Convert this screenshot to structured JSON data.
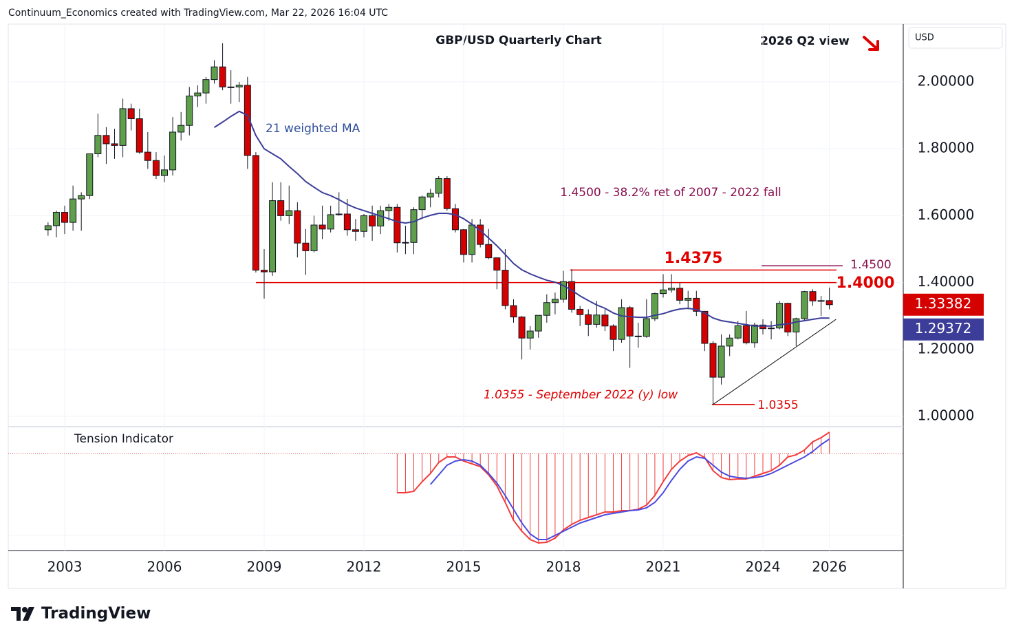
{
  "header": {
    "credit": "Continuum_Economics created with TradingView.com, Mar 22, 2026 16:04 UTC"
  },
  "footer": {
    "brand": "TradingView"
  },
  "chart_data": {
    "type": "candlestick",
    "title": "GBP/USD Quarterly Chart",
    "subtitle": "2026 Q2 view",
    "currency": "USD",
    "xlim": [
      2001.303,
      2028.221
    ],
    "xticks": [
      2003,
      2006,
      2009,
      2012,
      2015,
      2018,
      2021,
      2024,
      2026
    ],
    "ylim": [
      0.969,
      2.173
    ],
    "yticks": [
      {
        "value": 1.0,
        "label": "1.00000"
      },
      {
        "value": 1.2,
        "label": "1.20000"
      },
      {
        "value": 1.4,
        "label": "1.40000"
      },
      {
        "value": 1.6,
        "label": "1.60000"
      },
      {
        "value": 1.8,
        "label": "1.80000"
      },
      {
        "value": 2.0,
        "label": "2.00000"
      }
    ],
    "grid": true,
    "x": [
      2002.5,
      2002.75,
      2003,
      2003.25,
      2003.5,
      2003.75,
      2004,
      2004.25,
      2004.5,
      2004.75,
      2005,
      2005.25,
      2005.5,
      2005.75,
      2006,
      2006.25,
      2006.5,
      2006.75,
      2007,
      2007.25,
      2007.5,
      2007.75,
      2008,
      2008.25,
      2008.5,
      2008.75,
      2009,
      2009.25,
      2009.5,
      2009.75,
      2010,
      2010.25,
      2010.5,
      2010.75,
      2011,
      2011.25,
      2011.5,
      2011.75,
      2012,
      2012.25,
      2012.5,
      2012.75,
      2013,
      2013.25,
      2013.5,
      2013.75,
      2014,
      2014.25,
      2014.5,
      2014.75,
      2015,
      2015.25,
      2015.5,
      2015.75,
      2016,
      2016.25,
      2016.5,
      2016.75,
      2017,
      2017.25,
      2017.5,
      2017.75,
      2018,
      2018.25,
      2018.5,
      2018.75,
      2019,
      2019.25,
      2019.5,
      2019.75,
      2020,
      2020.25,
      2020.5,
      2020.75,
      2021,
      2021.25,
      2021.5,
      2021.75,
      2022,
      2022.25,
      2022.5,
      2022.75,
      2023,
      2023.25,
      2023.5,
      2023.75,
      2024,
      2024.25,
      2024.5,
      2024.75,
      2025,
      2025.25,
      2025.5,
      2025.75,
      2026
    ],
    "series": [
      {
        "up_color": "#5f9e4b",
        "down_color": "#d50000",
        "last_label": "1.33382",
        "ohlc": [
          [
            1.558,
            1.58,
            1.54,
            1.57
          ],
          [
            1.57,
            1.615,
            1.535,
            1.61
          ],
          [
            1.61,
            1.63,
            1.545,
            1.58
          ],
          [
            1.58,
            1.69,
            1.555,
            1.65
          ],
          [
            1.65,
            1.67,
            1.555,
            1.66
          ],
          [
            1.66,
            1.785,
            1.65,
            1.785
          ],
          [
            1.785,
            1.905,
            1.775,
            1.84
          ],
          [
            1.84,
            1.865,
            1.755,
            1.815
          ],
          [
            1.815,
            1.86,
            1.77,
            1.81
          ],
          [
            1.81,
            1.95,
            1.775,
            1.92
          ],
          [
            1.92,
            1.935,
            1.855,
            1.89
          ],
          [
            1.89,
            1.92,
            1.785,
            1.79
          ],
          [
            1.79,
            1.85,
            1.74,
            1.765
          ],
          [
            1.765,
            1.79,
            1.71,
            1.72
          ],
          [
            1.72,
            1.78,
            1.7,
            1.737
          ],
          [
            1.737,
            1.895,
            1.72,
            1.85
          ],
          [
            1.85,
            1.91,
            1.825,
            1.87
          ],
          [
            1.87,
            1.985,
            1.84,
            1.958
          ],
          [
            1.958,
            1.99,
            1.925,
            1.967
          ],
          [
            1.967,
            2.015,
            1.935,
            2.007
          ],
          [
            2.007,
            2.065,
            1.995,
            2.045
          ],
          [
            2.045,
            2.116,
            1.975,
            1.985
          ],
          [
            1.985,
            2.035,
            1.935,
            1.985
          ],
          [
            1.985,
            2.0,
            1.94,
            1.99
          ],
          [
            1.99,
            2.015,
            1.74,
            1.78
          ],
          [
            1.78,
            1.79,
            1.43,
            1.437
          ],
          [
            1.437,
            1.5,
            1.352,
            1.432
          ],
          [
            1.432,
            1.7,
            1.42,
            1.645
          ],
          [
            1.645,
            1.7,
            1.585,
            1.6
          ],
          [
            1.6,
            1.69,
            1.575,
            1.615
          ],
          [
            1.615,
            1.64,
            1.475,
            1.518
          ],
          [
            1.518,
            1.56,
            1.423,
            1.495
          ],
          [
            1.495,
            1.6,
            1.49,
            1.572
          ],
          [
            1.572,
            1.63,
            1.53,
            1.56
          ],
          [
            1.56,
            1.63,
            1.55,
            1.603
          ],
          [
            1.603,
            1.67,
            1.6,
            1.605
          ],
          [
            1.605,
            1.65,
            1.54,
            1.558
          ],
          [
            1.558,
            1.59,
            1.525,
            1.553
          ],
          [
            1.553,
            1.605,
            1.535,
            1.6
          ],
          [
            1.6,
            1.63,
            1.525,
            1.569
          ],
          [
            1.569,
            1.63,
            1.545,
            1.615
          ],
          [
            1.615,
            1.635,
            1.585,
            1.625
          ],
          [
            1.625,
            1.635,
            1.49,
            1.519
          ],
          [
            1.519,
            1.57,
            1.485,
            1.52
          ],
          [
            1.52,
            1.625,
            1.485,
            1.618
          ],
          [
            1.618,
            1.66,
            1.59,
            1.656
          ],
          [
            1.656,
            1.68,
            1.625,
            1.667
          ],
          [
            1.667,
            1.718,
            1.655,
            1.711
          ],
          [
            1.711,
            1.718,
            1.615,
            1.621
          ],
          [
            1.621,
            1.635,
            1.55,
            1.558
          ],
          [
            1.558,
            1.56,
            1.46,
            1.484
          ],
          [
            1.484,
            1.59,
            1.46,
            1.572
          ],
          [
            1.572,
            1.59,
            1.505,
            1.514
          ],
          [
            1.514,
            1.56,
            1.47,
            1.474
          ],
          [
            1.474,
            1.475,
            1.38,
            1.437
          ],
          [
            1.437,
            1.5,
            1.32,
            1.331
          ],
          [
            1.331,
            1.35,
            1.28,
            1.297
          ],
          [
            1.297,
            1.3,
            1.17,
            1.234
          ],
          [
            1.234,
            1.27,
            1.2,
            1.255
          ],
          [
            1.255,
            1.3,
            1.235,
            1.302
          ],
          [
            1.302,
            1.365,
            1.28,
            1.34
          ],
          [
            1.34,
            1.37,
            1.305,
            1.35
          ],
          [
            1.35,
            1.435,
            1.34,
            1.403
          ],
          [
            1.403,
            1.44,
            1.31,
            1.32
          ],
          [
            1.32,
            1.33,
            1.27,
            1.304
          ],
          [
            1.304,
            1.32,
            1.24,
            1.275
          ],
          [
            1.275,
            1.345,
            1.265,
            1.303
          ],
          [
            1.303,
            1.32,
            1.255,
            1.27
          ],
          [
            1.27,
            1.275,
            1.195,
            1.23
          ],
          [
            1.23,
            1.35,
            1.22,
            1.325
          ],
          [
            1.325,
            1.33,
            1.145,
            1.24
          ],
          [
            1.24,
            1.28,
            1.205,
            1.239
          ],
          [
            1.239,
            1.35,
            1.235,
            1.292
          ],
          [
            1.292,
            1.37,
            1.285,
            1.367
          ],
          [
            1.367,
            1.425,
            1.355,
            1.378
          ],
          [
            1.378,
            1.425,
            1.37,
            1.383
          ],
          [
            1.383,
            1.4,
            1.335,
            1.347
          ],
          [
            1.347,
            1.375,
            1.32,
            1.353
          ],
          [
            1.353,
            1.375,
            1.3,
            1.314
          ],
          [
            1.314,
            1.315,
            1.195,
            1.218
          ],
          [
            1.218,
            1.225,
            1.0355,
            1.117
          ],
          [
            1.117,
            1.245,
            1.095,
            1.21
          ],
          [
            1.21,
            1.245,
            1.18,
            1.234
          ],
          [
            1.234,
            1.285,
            1.23,
            1.271
          ],
          [
            1.271,
            1.315,
            1.215,
            1.22
          ],
          [
            1.22,
            1.28,
            1.205,
            1.273
          ],
          [
            1.273,
            1.29,
            1.245,
            1.262
          ],
          [
            1.262,
            1.285,
            1.23,
            1.264
          ],
          [
            1.264,
            1.345,
            1.26,
            1.338
          ],
          [
            1.338,
            1.34,
            1.24,
            1.252
          ],
          [
            1.252,
            1.295,
            1.21,
            1.292
          ],
          [
            1.292,
            1.375,
            1.285,
            1.373
          ],
          [
            1.373,
            1.38,
            1.33,
            1.345
          ],
          [
            1.345,
            1.36,
            1.3,
            1.346
          ],
          [
            1.346,
            1.385,
            1.32,
            1.33382
          ]
        ]
      },
      {
        "name": "21 weighted MA",
        "color": "#3b3d98",
        "last_label": "1.29372",
        "values": [
          null,
          null,
          null,
          null,
          null,
          null,
          null,
          null,
          null,
          null,
          null,
          null,
          null,
          null,
          null,
          null,
          null,
          null,
          null,
          null,
          1.864,
          1.88,
          1.897,
          1.912,
          1.9,
          1.84,
          1.8,
          1.785,
          1.77,
          1.747,
          1.726,
          1.702,
          1.685,
          1.669,
          1.66,
          1.648,
          1.634,
          1.623,
          1.615,
          1.607,
          1.599,
          1.591,
          1.582,
          1.578,
          1.582,
          1.593,
          1.601,
          1.607,
          1.607,
          1.603,
          1.591,
          1.574,
          1.556,
          1.533,
          1.51,
          1.484,
          1.457,
          1.438,
          1.426,
          1.416,
          1.407,
          1.401,
          1.391,
          1.377,
          1.36,
          1.346,
          1.333,
          1.323,
          1.309,
          1.3,
          1.298,
          1.296,
          1.296,
          1.302,
          1.307,
          1.315,
          1.321,
          1.323,
          1.319,
          1.309,
          1.294,
          1.286,
          1.282,
          1.278,
          1.274,
          1.27,
          1.27,
          1.27,
          1.274,
          1.276,
          1.282,
          1.286,
          1.29,
          1.294,
          1.29372
        ]
      }
    ],
    "levels": [
      {
        "value": 1.4,
        "label": "1.4000",
        "color": "#e00000"
      },
      {
        "value": 1.4375,
        "label": "1.4375",
        "color": "#e00000"
      },
      {
        "value": 1.45,
        "label": "1.4500",
        "color": "#880e4f"
      },
      {
        "value": 1.0355,
        "label": "1.0355",
        "color": "#e00000"
      }
    ],
    "trendline": {
      "x": [
        2022.5,
        2026.2
      ],
      "y": [
        1.0355,
        1.29
      ],
      "color": "#111111"
    },
    "annotations": [
      {
        "text": "1.4500 - 38.2% ret of 2007 - 2022 fall",
        "color": "#880e4f"
      },
      {
        "text": "1.0355 - September 2022 (y) low",
        "color": "#e00000"
      }
    ],
    "indicator": {
      "title": "Tension Indicator",
      "ylim": [
        -141,
        39
      ],
      "color": "#f23b3b",
      "signal_color": "#4a4ae0",
      "values": [
        null,
        null,
        null,
        null,
        null,
        null,
        null,
        null,
        null,
        null,
        null,
        null,
        null,
        null,
        null,
        null,
        null,
        null,
        null,
        null,
        null,
        null,
        null,
        null,
        null,
        null,
        null,
        null,
        null,
        null,
        null,
        null,
        null,
        null,
        null,
        null,
        null,
        null,
        null,
        null,
        null,
        null,
        -57,
        -57,
        -55,
        -41,
        -29,
        -13,
        -5,
        -5,
        -11,
        -15,
        -19,
        -31,
        -47,
        -71,
        -97,
        -113,
        -125,
        -130,
        -129,
        -123,
        -111,
        -103,
        -97,
        -93,
        -89,
        -85,
        -85,
        -83,
        -83,
        -81,
        -75,
        -61,
        -41,
        -23,
        -11,
        -3,
        1,
        -6,
        -25,
        -35,
        -38,
        -37,
        -37,
        -33,
        -29,
        -25,
        -17,
        -5,
        -2,
        5,
        17,
        23,
        31
      ],
      "signal": [
        null,
        null,
        null,
        null,
        null,
        null,
        null,
        null,
        null,
        null,
        null,
        null,
        null,
        null,
        null,
        null,
        null,
        null,
        null,
        null,
        null,
        null,
        null,
        null,
        null,
        null,
        null,
        null,
        null,
        null,
        null,
        null,
        null,
        null,
        null,
        null,
        null,
        null,
        null,
        null,
        null,
        null,
        null,
        null,
        null,
        null,
        -45,
        -31,
        -17,
        -11,
        -9,
        -11,
        -17,
        -29,
        -43,
        -61,
        -81,
        -101,
        -117,
        -125,
        -125,
        -119,
        -113,
        -107,
        -101,
        -97,
        -93,
        -89,
        -87,
        -85,
        -83,
        -82,
        -79,
        -71,
        -57,
        -39,
        -23,
        -11,
        -5,
        -7,
        -17,
        -27,
        -33,
        -35,
        -36,
        -35,
        -33,
        -29,
        -23,
        -17,
        -11,
        -5,
        3,
        13,
        21
      ]
    }
  }
}
